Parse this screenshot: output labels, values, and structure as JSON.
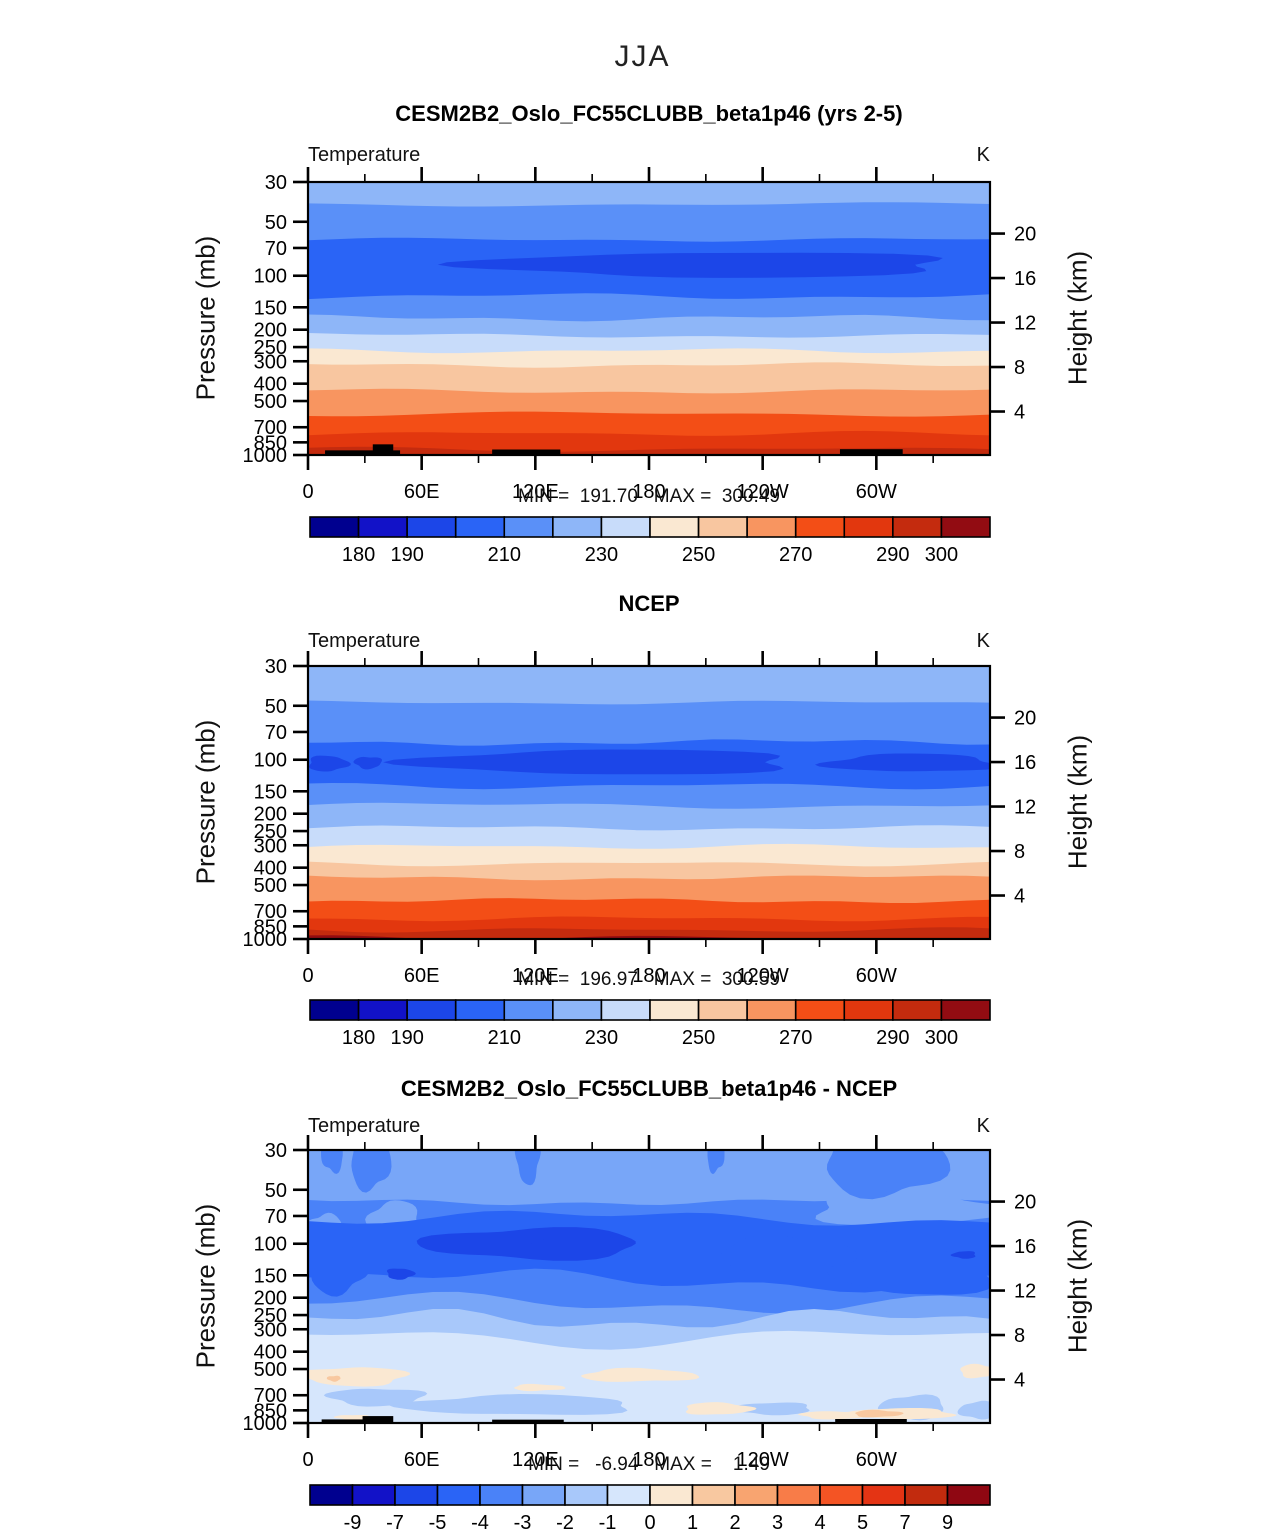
{
  "figure": {
    "title": "JJA"
  },
  "axes": {
    "field_label": "Temperature",
    "units_label": "K",
    "pressure_axis_label": "Pressure (mb)",
    "height_axis_label": "Height (km)",
    "y_scale": "log-pressure",
    "x_range_deg": [
      0,
      360
    ],
    "x_major_ticks": [
      {
        "deg": 0,
        "label": "0"
      },
      {
        "deg": 60,
        "label": "60E"
      },
      {
        "deg": 120,
        "label": "120E"
      },
      {
        "deg": 180,
        "label": "180"
      },
      {
        "deg": 240,
        "label": "120W"
      },
      {
        "deg": 300,
        "label": "60W"
      }
    ],
    "x_minor_ticks_deg": [
      30,
      90,
      150,
      210,
      270,
      330
    ],
    "pressure_ticks_mb": [
      30,
      50,
      70,
      100,
      150,
      200,
      250,
      300,
      400,
      500,
      700,
      850,
      1000
    ],
    "height_ticks_km": [
      20,
      16,
      12,
      8,
      4
    ]
  },
  "chart_data": [
    {
      "type": "filled-contour",
      "title": "CESM2B2_Oslo_FC55CLUBB_beta1p46 (yrs 2-5)",
      "field": "Temperature",
      "units": "K",
      "min_value": 191.7,
      "max_value": 300.49,
      "stats": "MIN =  191.70   MAX =  300.49",
      "contour_levels": [
        180,
        190,
        200,
        210,
        220,
        230,
        240,
        250,
        260,
        270,
        280,
        290,
        300
      ],
      "colorbar": {
        "colors": [
          "#00008F",
          "#1212C8",
          "#1C46E8",
          "#2A64F6",
          "#5A90F8",
          "#8EB6F8",
          "#C8DCFA",
          "#FAE8D2",
          "#F8C6A0",
          "#F89560",
          "#F34E16",
          "#E2370E",
          "#C42B0E",
          "#920C12"
        ],
        "tick_labels": [
          "180",
          "190",
          "210",
          "230",
          "250",
          "270",
          "290",
          "300"
        ],
        "tick_index": [
          1,
          2,
          4,
          6,
          8,
          10,
          12,
          13
        ]
      },
      "bands": [
        {
          "level": "220-230 K",
          "color": "#8EB6F8",
          "top_mb": 30,
          "bottom_mb": 40
        },
        {
          "level": "210-220 K",
          "color": "#5A90F8",
          "top_mb": 40,
          "bottom_mb": 63
        },
        {
          "level": "200-210 K",
          "color": "#2A64F6",
          "top_mb": 63,
          "bottom_mb": 130
        },
        {
          "level": "210-220 K",
          "color": "#5A90F8",
          "top_mb": 130,
          "bottom_mb": 172
        },
        {
          "level": "220-230 K",
          "color": "#8EB6F8",
          "top_mb": 172,
          "bottom_mb": 215
        },
        {
          "level": "230-240 K",
          "color": "#C8DCFA",
          "top_mb": 215,
          "bottom_mb": 262
        },
        {
          "level": "240-250 K",
          "color": "#FAE8D2",
          "top_mb": 262,
          "bottom_mb": 315
        },
        {
          "level": "250-260 K",
          "color": "#F8C6A0",
          "top_mb": 315,
          "bottom_mb": 440
        },
        {
          "level": "260-270 K",
          "color": "#F89560",
          "top_mb": 440,
          "bottom_mb": 590
        },
        {
          "level": "270-280 K",
          "color": "#F34E16",
          "top_mb": 590,
          "bottom_mb": 760
        },
        {
          "level": "280-290 K",
          "color": "#E2370E",
          "top_mb": 760,
          "bottom_mb": 930
        },
        {
          "level": "290-300 K",
          "color": "#C42B0E",
          "top_mb": 930,
          "bottom_mb": 1000
        }
      ],
      "overlays": [
        {
          "shape": "blob",
          "level": "190-200 K",
          "color": "#1C46E8",
          "x0": 0.25,
          "x1": 0.95,
          "top_mb": 74,
          "bottom_mb": 102
        }
      ],
      "topography": [
        {
          "x0": 0.025,
          "x1": 0.135,
          "top_mb": 942
        },
        {
          "x0": 0.095,
          "x1": 0.125,
          "top_mb": 872
        },
        {
          "x0": 0.27,
          "x1": 0.37,
          "top_mb": 932
        },
        {
          "x0": 0.78,
          "x1": 0.872,
          "top_mb": 928
        }
      ]
    },
    {
      "type": "filled-contour",
      "title": "NCEP",
      "field": "Temperature",
      "units": "K",
      "min_value": 196.97,
      "max_value": 300.59,
      "stats": "MIN =  196.97   MAX =  300.59",
      "contour_levels": [
        180,
        190,
        200,
        210,
        220,
        230,
        240,
        250,
        260,
        270,
        280,
        290,
        300
      ],
      "colorbar": {
        "colors": [
          "#00008F",
          "#1212C8",
          "#1C46E8",
          "#2A64F6",
          "#5A90F8",
          "#8EB6F8",
          "#C8DCFA",
          "#FAE8D2",
          "#F8C6A0",
          "#F89560",
          "#F34E16",
          "#E2370E",
          "#C42B0E",
          "#920C12"
        ],
        "tick_labels": [
          "180",
          "190",
          "210",
          "230",
          "250",
          "270",
          "290",
          "300"
        ],
        "tick_index": [
          1,
          2,
          4,
          6,
          8,
          10,
          12,
          13
        ]
      },
      "bands": [
        {
          "level": "220-230 K",
          "color": "#8EB6F8",
          "top_mb": 30,
          "bottom_mb": 48
        },
        {
          "level": "210-220 K",
          "color": "#5A90F8",
          "top_mb": 48,
          "bottom_mb": 80
        },
        {
          "level": "200-210 K",
          "color": "#2A64F6",
          "top_mb": 80,
          "bottom_mb": 140
        },
        {
          "level": "210-220 K",
          "color": "#5A90F8",
          "top_mb": 140,
          "bottom_mb": 180
        },
        {
          "level": "220-230 K",
          "color": "#8EB6F8",
          "top_mb": 180,
          "bottom_mb": 240
        },
        {
          "level": "230-240 K",
          "color": "#C8DCFA",
          "top_mb": 240,
          "bottom_mb": 305
        },
        {
          "level": "240-250 K",
          "color": "#FAE8D2",
          "top_mb": 305,
          "bottom_mb": 380
        },
        {
          "level": "250-260 K",
          "color": "#F8C6A0",
          "top_mb": 380,
          "bottom_mb": 455
        },
        {
          "level": "260-270 K",
          "color": "#F89560",
          "top_mb": 455,
          "bottom_mb": 610
        },
        {
          "level": "270-280 K",
          "color": "#F34E16",
          "top_mb": 610,
          "bottom_mb": 770
        },
        {
          "level": "280-290 K",
          "color": "#E2370E",
          "top_mb": 770,
          "bottom_mb": 890
        },
        {
          "level": "290-300 K",
          "color": "#C42B0E",
          "top_mb": 890,
          "bottom_mb": 985
        },
        {
          "level": "> 300 K",
          "color": "#920C12",
          "top_mb": 985,
          "bottom_mb": 1000
        }
      ],
      "overlays": [
        {
          "shape": "blob",
          "level": "190-200 K",
          "color": "#1C46E8",
          "x0": 0.0,
          "x1": 0.058,
          "top_mb": 95,
          "bottom_mb": 116
        },
        {
          "shape": "blob",
          "level": "190-200 K",
          "color": "#1C46E8",
          "x0": 0.068,
          "x1": 0.108,
          "top_mb": 96,
          "bottom_mb": 112
        },
        {
          "shape": "blob",
          "level": "190-200 K",
          "color": "#1C46E8",
          "x0": 0.16,
          "x1": 0.72,
          "top_mb": 88,
          "bottom_mb": 121
        },
        {
          "shape": "blob",
          "level": "190-200 K",
          "color": "#1C46E8",
          "x0": 0.76,
          "x1": 1.01,
          "top_mb": 93,
          "bottom_mb": 117
        }
      ],
      "topography": []
    },
    {
      "type": "filled-contour-difference",
      "title": "CESM2B2_Oslo_FC55CLUBB_beta1p46 - NCEP",
      "field": "Temperature",
      "units": "K",
      "min_value": -6.94,
      "max_value": 1.49,
      "stats": "MIN =   -6.94   MAX =    1.49",
      "contour_levels": [
        -9,
        -7,
        -5,
        -4,
        -3,
        -2,
        -1,
        0,
        1,
        2,
        3,
        4,
        5,
        7,
        9
      ],
      "colorbar": {
        "colors": [
          "#00008F",
          "#1212C8",
          "#1C46E8",
          "#2A64F6",
          "#4A82F8",
          "#78A6F8",
          "#A8C8FA",
          "#D6E6FC",
          "#FAE8D2",
          "#F8C8A0",
          "#F8A470",
          "#F87C48",
          "#F45424",
          "#E43414",
          "#C22B0E",
          "#8F0712"
        ],
        "tick_labels": [
          "-9",
          "-7",
          "-5",
          "-4",
          "-3",
          "-2",
          "-1",
          "0",
          "1",
          "2",
          "3",
          "4",
          "5",
          "7",
          "9"
        ],
        "tick_index": [
          1,
          2,
          3,
          4,
          5,
          6,
          7,
          8,
          9,
          10,
          11,
          12,
          13,
          14,
          15
        ]
      },
      "bands": [
        {
          "level": "-3 to -2 K",
          "color": "#78A6F8",
          "top_mb": 30,
          "bottom_mb": 58
        },
        {
          "level": "-4 to -3 K",
          "color": "#4A82F8",
          "top_mb": 58,
          "bottom_mb": 215
        },
        {
          "level": "-3 to -2 K",
          "color": "#78A6F8",
          "top_mb": 215,
          "bottom_mb": 265
        },
        {
          "level": "-2 to -1 K",
          "color": "#A8C8FA",
          "top_mb": 265,
          "bottom_mb": 335
        },
        {
          "level": "-1 to 0 K",
          "color": "#D6E6FC",
          "top_mb": 335,
          "bottom_mb": 1000
        }
      ],
      "overlays": [
        {
          "shape": "blob",
          "level": "-3 to -2 K",
          "color": "#78A6F8",
          "x0": 0.74,
          "x1": 1.01,
          "top_mb": 52,
          "bottom_mb": 80
        },
        {
          "shape": "blob",
          "level": "-3 to -2 K",
          "color": "#78A6F8",
          "x0": 0.0,
          "x1": 0.05,
          "top_mb": 68,
          "bottom_mb": 100
        },
        {
          "shape": "blob",
          "level": "-3 to -2 K",
          "color": "#78A6F8",
          "x0": 0.09,
          "x1": 0.165,
          "top_mb": 58,
          "bottom_mb": 92
        },
        {
          "shape": "band",
          "level": "-5 to -4 K",
          "color": "#2A64F6",
          "x0": 0.0,
          "x1": 1.0,
          "top_mb": 72,
          "bottom_mb": 160
        },
        {
          "shape": "blob",
          "level": "-5 to -4 K",
          "color": "#2A64F6",
          "x0": 0.0,
          "x1": 0.085,
          "top_mb": 98,
          "bottom_mb": 190
        },
        {
          "shape": "blob",
          "level": "-5 to -4 K",
          "color": "#2A64F6",
          "x0": 0.78,
          "x1": 1.01,
          "top_mb": 105,
          "bottom_mb": 195
        },
        {
          "shape": "blob",
          "level": "-5 to -4 K",
          "color": "#2A64F6",
          "x0": 0.6,
          "x1": 0.8,
          "top_mb": 92,
          "bottom_mb": 142
        },
        {
          "shape": "blob",
          "level": "-7 to -5 K",
          "color": "#1C46E8",
          "x0": 0.17,
          "x1": 0.49,
          "top_mb": 82,
          "bottom_mb": 122
        },
        {
          "shape": "blob",
          "level": "-7 to -5 K",
          "color": "#1C46E8",
          "x0": 0.33,
          "x1": 0.465,
          "top_mb": 87,
          "bottom_mb": 110
        },
        {
          "shape": "blob",
          "level": "-7 to -5 K",
          "color": "#1C46E8",
          "x0": 0.115,
          "x1": 0.155,
          "top_mb": 137,
          "bottom_mb": 158
        },
        {
          "shape": "blob",
          "level": "-7 to -5 K",
          "color": "#1C46E8",
          "x0": 0.945,
          "x1": 0.98,
          "top_mb": 110,
          "bottom_mb": 121
        },
        {
          "shape": "blob",
          "level": "-4 to -3 K",
          "color": "#4A82F8",
          "x0": 0.02,
          "x1": 0.052,
          "top_mb": 24,
          "bottom_mb": 40
        },
        {
          "shape": "blob",
          "level": "-4 to -3 K",
          "color": "#4A82F8",
          "x0": 0.062,
          "x1": 0.12,
          "top_mb": 24,
          "bottom_mb": 50
        },
        {
          "shape": "blob",
          "level": "-4 to -3 K",
          "color": "#4A82F8",
          "x0": 0.305,
          "x1": 0.34,
          "top_mb": 24,
          "bottom_mb": 46
        },
        {
          "shape": "blob",
          "level": "-4 to -3 K",
          "color": "#4A82F8",
          "x0": 0.585,
          "x1": 0.61,
          "top_mb": 24,
          "bottom_mb": 40
        },
        {
          "shape": "blob",
          "level": "-4 to -3 K",
          "color": "#4A82F8",
          "x0": 0.755,
          "x1": 0.935,
          "top_mb": 24,
          "bottom_mb": 54
        },
        {
          "shape": "blob",
          "level": "-2 to -1 K",
          "color": "#A8C8FA",
          "x0": 0.03,
          "x1": 0.17,
          "top_mb": 640,
          "bottom_mb": 800
        },
        {
          "shape": "blob",
          "level": "-2 to -1 K",
          "color": "#A8C8FA",
          "x0": 0.14,
          "x1": 0.48,
          "top_mb": 700,
          "bottom_mb": 905
        },
        {
          "shape": "blob",
          "level": "-2 to -1 K",
          "color": "#A8C8FA",
          "x0": 0.62,
          "x1": 0.74,
          "top_mb": 770,
          "bottom_mb": 900
        },
        {
          "shape": "blob",
          "level": "-2 to -1 K",
          "color": "#A8C8FA",
          "x0": 0.84,
          "x1": 0.935,
          "top_mb": 700,
          "bottom_mb": 950
        },
        {
          "shape": "blob",
          "level": "-2 to -1 K",
          "color": "#A8C8FA",
          "x0": 0.955,
          "x1": 1.01,
          "top_mb": 760,
          "bottom_mb": 950
        },
        {
          "shape": "blob",
          "level": "0 to 1 K",
          "color": "#FAE8D2",
          "x0": -0.01,
          "x1": 0.145,
          "top_mb": 487,
          "bottom_mb": 620
        },
        {
          "shape": "blob",
          "level": "0 to 1 K",
          "color": "#FAE8D2",
          "x0": 0.3,
          "x1": 0.375,
          "top_mb": 608,
          "bottom_mb": 662
        },
        {
          "shape": "blob",
          "level": "0 to 1 K",
          "color": "#FAE8D2",
          "x0": 0.4,
          "x1": 0.57,
          "top_mb": 498,
          "bottom_mb": 590
        },
        {
          "shape": "blob",
          "level": "0 to 1 K",
          "color": "#FAE8D2",
          "x0": 0.955,
          "x1": 1.01,
          "top_mb": 470,
          "bottom_mb": 560
        },
        {
          "shape": "blob",
          "level": "0 to 1 K",
          "color": "#FAE8D2",
          "x0": 0.55,
          "x1": 0.65,
          "top_mb": 770,
          "bottom_mb": 900
        },
        {
          "shape": "blob",
          "level": "0 to 1 K",
          "color": "#FAE8D2",
          "x0": 0.72,
          "x1": 0.83,
          "top_mb": 860,
          "bottom_mb": 950
        },
        {
          "shape": "blob",
          "level": "0 to 1 K",
          "color": "#FAE8D2",
          "x0": 0.78,
          "x1": 0.95,
          "top_mb": 830,
          "bottom_mb": 950
        },
        {
          "shape": "blob",
          "level": "0 to 1 K",
          "color": "#FAE8D2",
          "x0": 0.04,
          "x1": 0.09,
          "top_mb": 900,
          "bottom_mb": 960
        },
        {
          "shape": "blob",
          "level": "1 to 2 K",
          "color": "#F8C8A0",
          "x0": 0.8,
          "x1": 0.87,
          "top_mb": 848,
          "bottom_mb": 928
        },
        {
          "shape": "blob",
          "level": "1 to 2 K",
          "color": "#F8C8A0",
          "x0": 0.028,
          "x1": 0.048,
          "top_mb": 545,
          "bottom_mb": 585
        }
      ],
      "topography": [
        {
          "x0": 0.02,
          "x1": 0.085,
          "top_mb": 955
        },
        {
          "x0": 0.08,
          "x1": 0.125,
          "top_mb": 915
        },
        {
          "x0": 0.27,
          "x1": 0.375,
          "top_mb": 958
        },
        {
          "x0": 0.773,
          "x1": 0.878,
          "top_mb": 950
        }
      ]
    }
  ]
}
